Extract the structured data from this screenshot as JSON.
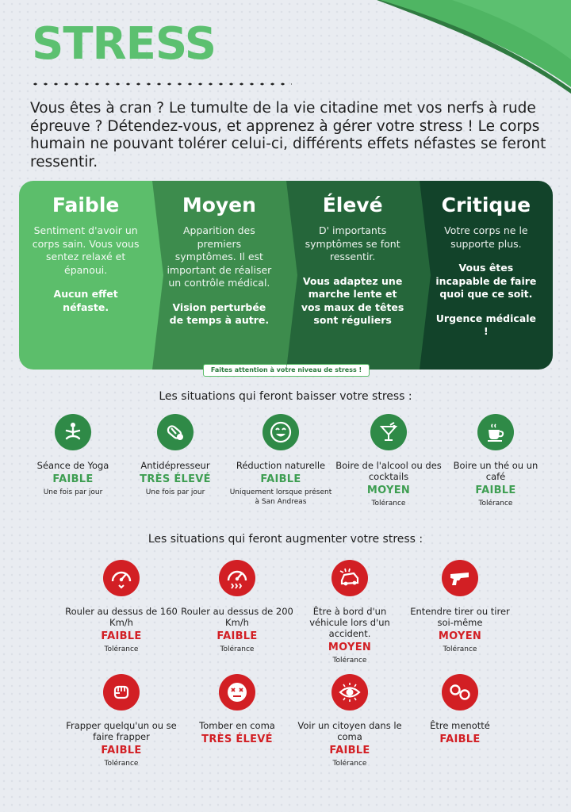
{
  "title": "STRESS",
  "intro": "Vous êtes à cran ? Le tumulte de la vie citadine met vos nerfs à rude épreuve ? Détendez-vous, et apprenez à gérer votre stress ! Le corps humain ne pouvant tolérer celui-ci, différents effets néfastes se feront ressentir.",
  "levels": [
    {
      "name": "Faible",
      "desc": "Sentiment d'avoir un corps sain. Vous vous sentez relaxé et épanoui.",
      "strong": "Aucun effet néfaste."
    },
    {
      "name": "Moyen",
      "desc": "Apparition des premiers symptômes. Il est important de réaliser un contrôle médical.",
      "strong": "Vision perturbée de temps à autre."
    },
    {
      "name": "Élevé",
      "desc": "D' importants symptômes se font ressentir.",
      "strong": "Vous adaptez une marche lente et vos maux de têtes sont réguliers"
    },
    {
      "name": "Critique",
      "desc": "Votre corps ne le supporte plus.",
      "strong": "Vous êtes incapable de faire quoi que ce soit.",
      "strong2": "Urgence médicale !"
    }
  ],
  "warning": "Faites attention à votre niveau de stress !",
  "decrease": {
    "title": "Les situations qui feront baisser votre stress :",
    "items": [
      {
        "icon": "yoga-icon",
        "label": "Séance de Yoga",
        "level": "FAIBLE",
        "note": "Une fois par jour"
      },
      {
        "icon": "pill-icon",
        "label": "Antidépresseur",
        "level": "TRÈS ÉLEVÉ",
        "note": "Une fois par jour"
      },
      {
        "icon": "smile-icon",
        "label": "Réduction naturelle",
        "level": "FAIBLE",
        "note": "Uniquement lorsque présent à San Andreas"
      },
      {
        "icon": "cocktail-icon",
        "label": "Boire de l'alcool ou des cocktails",
        "level": "MOYEN",
        "note": "Tolérance"
      },
      {
        "icon": "cup-icon",
        "label": "Boire un thé ou un café",
        "level": "FAIBLE",
        "note": "Tolérance"
      }
    ]
  },
  "increase": {
    "title": "Les situations qui feront augmenter votre stress :",
    "items": [
      {
        "icon": "speedometer-icon",
        "label": "Rouler au dessus de 160 Km/h",
        "level": "FAIBLE",
        "note": "Tolérance"
      },
      {
        "icon": "speedometer-fast-icon",
        "label": "Rouler au dessus de 200 Km/h",
        "level": "FAIBLE",
        "note": "Tolérance"
      },
      {
        "icon": "car-crash-icon",
        "label": "Être à bord d'un véhicule lors d'un accident.",
        "level": "MOYEN",
        "note": "Tolérance"
      },
      {
        "icon": "gun-icon",
        "label": "Entendre tirer ou tirer soi-même",
        "level": "MOYEN",
        "note": "Tolérance"
      },
      {
        "icon": "fist-icon",
        "label": "Frapper quelqu'un ou se faire frapper",
        "level": "FAIBLE",
        "note": "Tolérance"
      },
      {
        "icon": "dizzy-face-icon",
        "label": "Tomber en coma",
        "level": "TRÈS ÉLEVÉ",
        "note": ""
      },
      {
        "icon": "eye-icon",
        "label": "Voir un citoyen dans le coma",
        "level": "FAIBLE",
        "note": "Tolérance"
      },
      {
        "icon": "handcuffs-icon",
        "label": "Être menotté",
        "level": "FAIBLE",
        "note": ""
      }
    ]
  },
  "colors": {
    "accent_green": "#5cc070",
    "faible": "#5cbe6b",
    "moyen": "#3d8c4d",
    "eleve": "#25663a",
    "critique": "#12432a",
    "danger_red": "#d21f24"
  }
}
